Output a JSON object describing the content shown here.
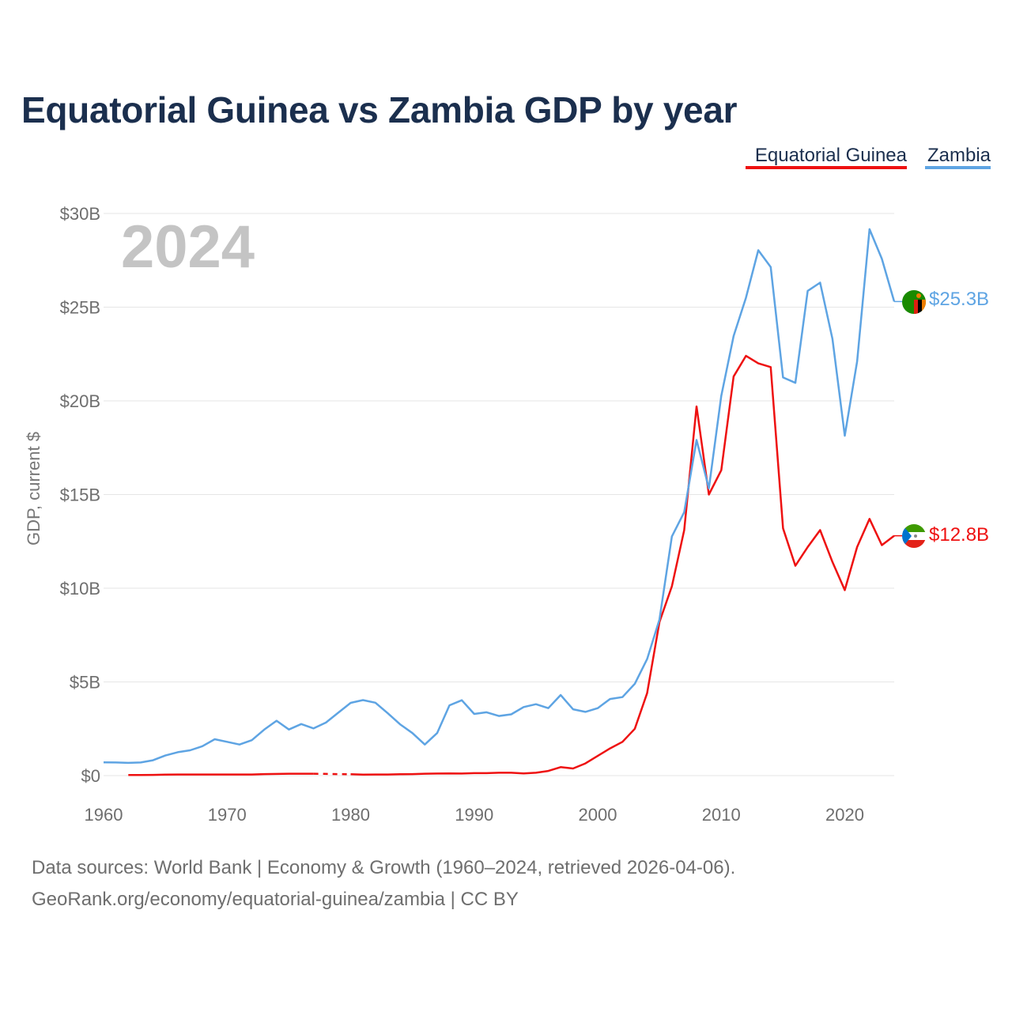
{
  "chart_data": {
    "type": "line",
    "title": "Equatorial Guinea vs Zambia GDP by year",
    "ylabel": "GDP, current $",
    "xlabel": "",
    "year_label": "2024",
    "xlim": [
      1960,
      2024
    ],
    "ylim": [
      0,
      30
    ],
    "y_unit": "billions USD",
    "x_ticks": [
      1960,
      1970,
      1980,
      1990,
      2000,
      2010,
      2020
    ],
    "y_ticks": [
      {
        "value": 0,
        "label": "$0"
      },
      {
        "value": 5,
        "label": "$5B"
      },
      {
        "value": 10,
        "label": "$10B"
      },
      {
        "value": 15,
        "label": "$15B"
      },
      {
        "value": 20,
        "label": "$20B"
      },
      {
        "value": 25,
        "label": "$25B"
      },
      {
        "value": 30,
        "label": "$30B"
      }
    ],
    "grid": true,
    "legend_position": "top-right",
    "series": [
      {
        "name": "Equatorial Guinea",
        "color": "#ee1111",
        "end_label": "$12.8B",
        "flag_icon": "equatorial-guinea-flag-icon",
        "gap_years": [
          1978,
          1979
        ],
        "points": [
          [
            1962,
            0.03
          ],
          [
            1963,
            0.03
          ],
          [
            1964,
            0.04
          ],
          [
            1965,
            0.05
          ],
          [
            1966,
            0.06
          ],
          [
            1967,
            0.06
          ],
          [
            1968,
            0.06
          ],
          [
            1969,
            0.06
          ],
          [
            1970,
            0.06
          ],
          [
            1971,
            0.06
          ],
          [
            1972,
            0.06
          ],
          [
            1973,
            0.08
          ],
          [
            1974,
            0.09
          ],
          [
            1975,
            0.1
          ],
          [
            1976,
            0.1
          ],
          [
            1977,
            0.1
          ],
          [
            1980,
            0.07
          ],
          [
            1981,
            0.05
          ],
          [
            1982,
            0.06
          ],
          [
            1983,
            0.06
          ],
          [
            1984,
            0.07
          ],
          [
            1985,
            0.08
          ],
          [
            1986,
            0.1
          ],
          [
            1987,
            0.11
          ],
          [
            1988,
            0.12
          ],
          [
            1989,
            0.11
          ],
          [
            1990,
            0.13
          ],
          [
            1991,
            0.13
          ],
          [
            1992,
            0.15
          ],
          [
            1993,
            0.15
          ],
          [
            1994,
            0.12
          ],
          [
            1995,
            0.15
          ],
          [
            1996,
            0.25
          ],
          [
            1997,
            0.45
          ],
          [
            1998,
            0.38
          ],
          [
            1999,
            0.65
          ],
          [
            2000,
            1.05
          ],
          [
            2001,
            1.45
          ],
          [
            2002,
            1.8
          ],
          [
            2003,
            2.5
          ],
          [
            2004,
            4.4
          ],
          [
            2005,
            8.2
          ],
          [
            2006,
            10.1
          ],
          [
            2007,
            13.1
          ],
          [
            2008,
            19.7
          ],
          [
            2009,
            15.0
          ],
          [
            2010,
            16.3
          ],
          [
            2011,
            21.3
          ],
          [
            2012,
            22.4
          ],
          [
            2013,
            22.0
          ],
          [
            2014,
            21.8
          ],
          [
            2015,
            13.2
          ],
          [
            2016,
            11.2
          ],
          [
            2017,
            12.2
          ],
          [
            2018,
            13.1
          ],
          [
            2019,
            11.4
          ],
          [
            2020,
            9.9
          ],
          [
            2021,
            12.2
          ],
          [
            2022,
            13.7
          ],
          [
            2023,
            12.3
          ],
          [
            2024,
            12.8
          ]
        ]
      },
      {
        "name": "Zambia",
        "color": "#5ea4e3",
        "end_label": "$25.3B",
        "flag_icon": "zambia-flag-icon",
        "gap_years": [],
        "points": [
          [
            1960,
            0.71
          ],
          [
            1961,
            0.7
          ],
          [
            1962,
            0.68
          ],
          [
            1963,
            0.7
          ],
          [
            1964,
            0.82
          ],
          [
            1965,
            1.07
          ],
          [
            1966,
            1.25
          ],
          [
            1967,
            1.35
          ],
          [
            1968,
            1.57
          ],
          [
            1969,
            1.94
          ],
          [
            1970,
            1.8
          ],
          [
            1971,
            1.66
          ],
          [
            1972,
            1.89
          ],
          [
            1973,
            2.45
          ],
          [
            1974,
            2.93
          ],
          [
            1975,
            2.46
          ],
          [
            1976,
            2.75
          ],
          [
            1977,
            2.52
          ],
          [
            1978,
            2.83
          ],
          [
            1979,
            3.36
          ],
          [
            1980,
            3.88
          ],
          [
            1981,
            4.03
          ],
          [
            1982,
            3.89
          ],
          [
            1983,
            3.33
          ],
          [
            1984,
            2.74
          ],
          [
            1985,
            2.27
          ],
          [
            1986,
            1.66
          ],
          [
            1987,
            2.27
          ],
          [
            1988,
            3.75
          ],
          [
            1989,
            4.02
          ],
          [
            1990,
            3.29
          ],
          [
            1991,
            3.38
          ],
          [
            1992,
            3.18
          ],
          [
            1993,
            3.27
          ],
          [
            1994,
            3.66
          ],
          [
            1995,
            3.81
          ],
          [
            1996,
            3.6
          ],
          [
            1997,
            4.3
          ],
          [
            1998,
            3.54
          ],
          [
            1999,
            3.4
          ],
          [
            2000,
            3.6
          ],
          [
            2001,
            4.09
          ],
          [
            2002,
            4.19
          ],
          [
            2003,
            4.9
          ],
          [
            2004,
            6.22
          ],
          [
            2005,
            8.33
          ],
          [
            2006,
            12.76
          ],
          [
            2007,
            14.06
          ],
          [
            2008,
            17.91
          ],
          [
            2009,
            15.33
          ],
          [
            2010,
            20.27
          ],
          [
            2011,
            23.46
          ],
          [
            2012,
            25.5
          ],
          [
            2013,
            28.04
          ],
          [
            2014,
            27.14
          ],
          [
            2015,
            21.25
          ],
          [
            2016,
            20.96
          ],
          [
            2017,
            25.87
          ],
          [
            2018,
            26.31
          ],
          [
            2019,
            23.31
          ],
          [
            2020,
            18.14
          ],
          [
            2021,
            22.1
          ],
          [
            2022,
            29.16
          ],
          [
            2023,
            27.58
          ],
          [
            2024,
            25.3
          ]
        ]
      }
    ]
  },
  "footer": {
    "line1": "Data sources: World Bank | Economy & Growth (1960–2024, retrieved 2026-04-06).",
    "line2": "GeoRank.org/economy/equatorial-guinea/zambia | CC BY"
  }
}
